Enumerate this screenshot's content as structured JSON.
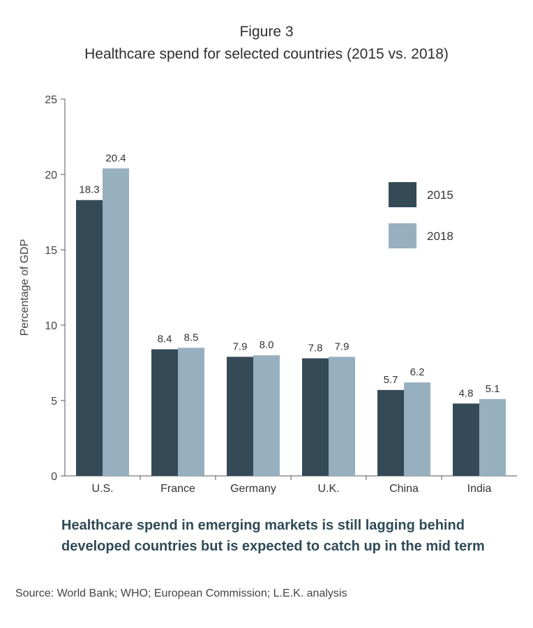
{
  "figure_label": "Figure 3",
  "footer": {
    "takeaway_line1": "Healthcare spend in emerging markets is still lagging behind",
    "takeaway_line2": "developed countries but is expected to catch up in the mid term",
    "source": "Source: World Bank; WHO; European Commission; L.E.K. analysis"
  },
  "chart_data": {
    "type": "bar",
    "title": "Healthcare spend for selected countries (2015 vs. 2018)",
    "xlabel": "",
    "ylabel": "Percentage of GDP",
    "ylim": [
      0,
      25
    ],
    "yticks": [
      0,
      5,
      10,
      15,
      20,
      25
    ],
    "grid": false,
    "legend_position": "right",
    "categories": [
      "U.S.",
      "France",
      "Germany",
      "U.K.",
      "China",
      "India"
    ],
    "series": [
      {
        "name": "2015",
        "color": "#344a57",
        "values": [
          18.3,
          8.4,
          7.9,
          7.8,
          5.7,
          4.8
        ]
      },
      {
        "name": "2018",
        "color": "#97b0c0",
        "values": [
          20.4,
          8.5,
          8.0,
          7.9,
          6.2,
          5.1
        ]
      }
    ]
  }
}
